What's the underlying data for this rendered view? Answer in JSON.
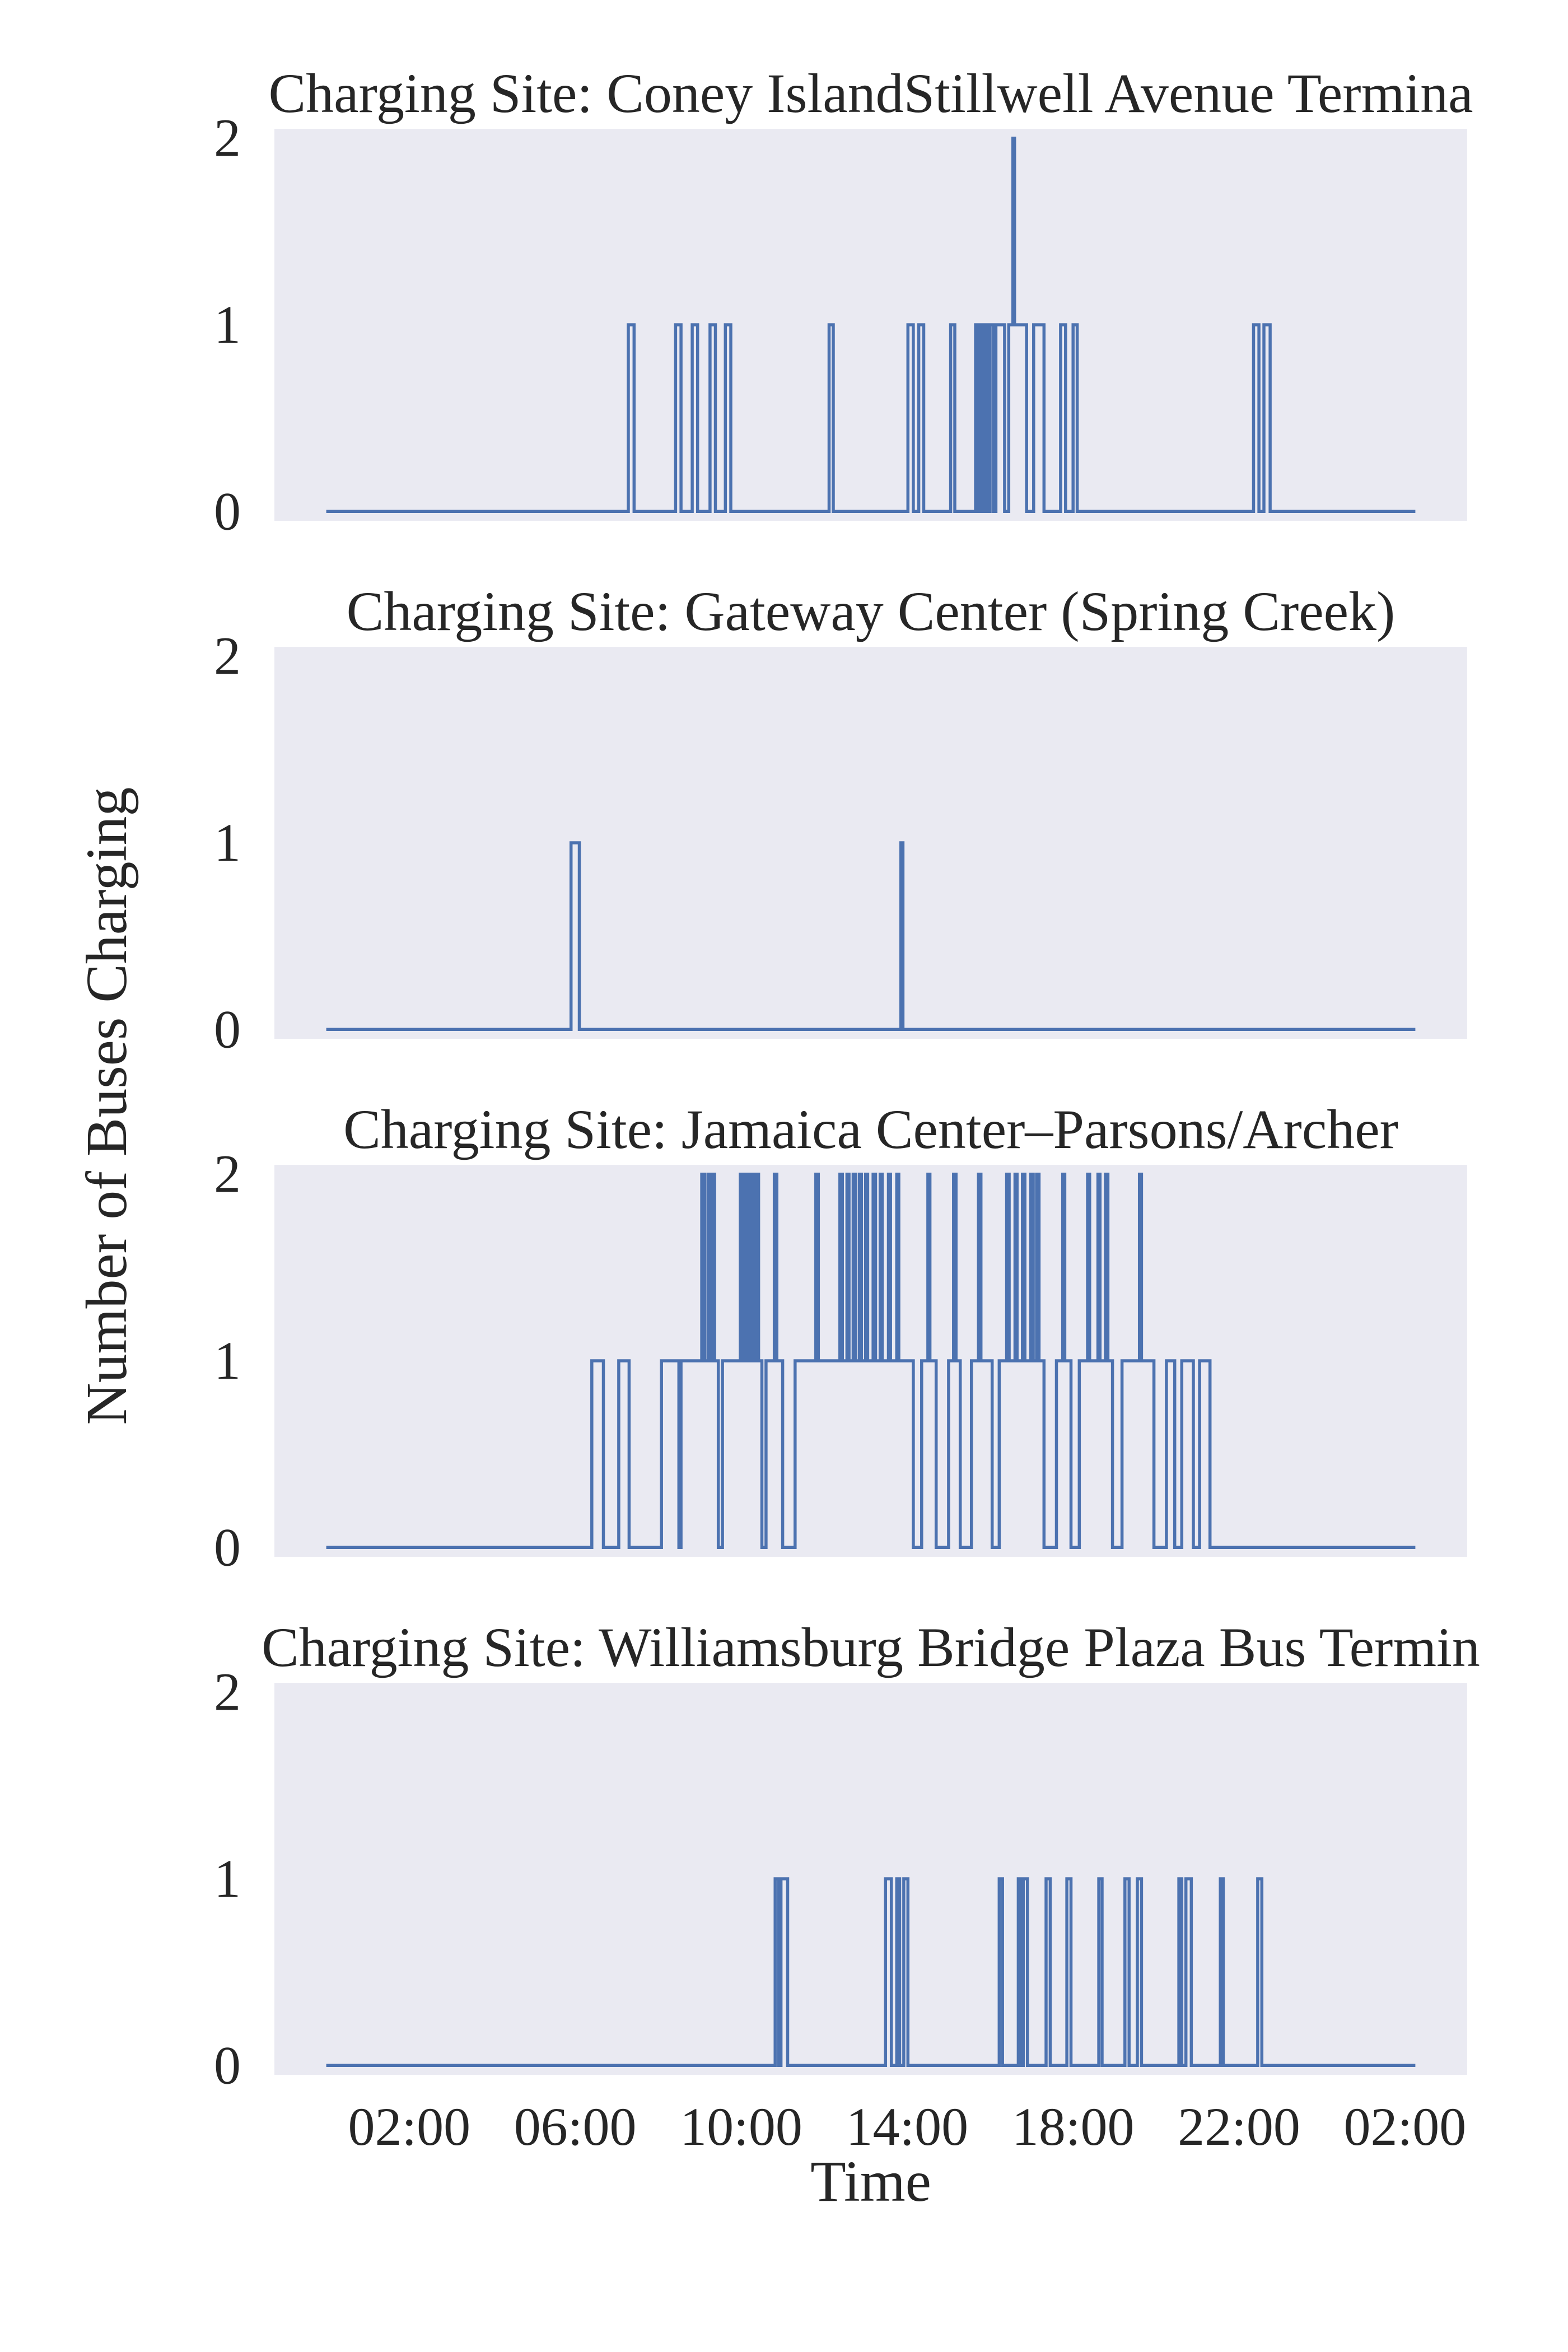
{
  "chart_data": {
    "type": "line",
    "step": "post",
    "xlabel": "Time",
    "ylabel": "Number of Buses Charging",
    "x_unit": "hours since start (00:00 day 1)",
    "xticks": [
      {
        "t": 2,
        "label": "02:00"
      },
      {
        "t": 6,
        "label": "06:00"
      },
      {
        "t": 10,
        "label": "10:00"
      },
      {
        "t": 14,
        "label": "14:00"
      },
      {
        "t": 18,
        "label": "18:00"
      },
      {
        "t": 22,
        "label": "22:00"
      },
      {
        "t": 26,
        "label": "02:00"
      }
    ],
    "xlim": [
      -1.25,
      27.5
    ],
    "ylim": [
      -0.05,
      2.05
    ],
    "yticks": [
      0,
      1,
      2
    ],
    "grid": false,
    "background": "#eaeaf2",
    "line_color": "#4c72b0",
    "panels": [
      {
        "title": "Charging Site: Coney IslandStillwell Avenue Termina",
        "t_start": 0,
        "t_end": 26.25,
        "steps": [
          [
            0,
            0
          ],
          [
            7.28,
            1
          ],
          [
            7.42,
            0
          ],
          [
            8.42,
            1
          ],
          [
            8.55,
            0
          ],
          [
            8.82,
            1
          ],
          [
            8.95,
            0
          ],
          [
            9.25,
            1
          ],
          [
            9.38,
            0
          ],
          [
            9.62,
            1
          ],
          [
            9.75,
            0
          ],
          [
            12.12,
            1
          ],
          [
            12.22,
            0
          ],
          [
            14.02,
            1
          ],
          [
            14.15,
            0
          ],
          [
            14.28,
            1
          ],
          [
            14.4,
            0
          ],
          [
            15.05,
            1
          ],
          [
            15.15,
            0
          ],
          [
            15.65,
            1
          ],
          [
            15.72,
            0
          ],
          [
            15.78,
            1
          ],
          [
            15.85,
            0
          ],
          [
            15.9,
            1
          ],
          [
            15.95,
            0
          ],
          [
            16.0,
            1
          ],
          [
            16.08,
            0
          ],
          [
            16.14,
            1
          ],
          [
            16.35,
            0
          ],
          [
            16.45,
            1
          ],
          [
            16.55,
            2
          ],
          [
            16.59,
            1
          ],
          [
            16.88,
            0
          ],
          [
            17.05,
            1
          ],
          [
            17.3,
            0
          ],
          [
            17.7,
            1
          ],
          [
            17.82,
            0
          ],
          [
            18.0,
            1
          ],
          [
            18.1,
            0
          ],
          [
            22.35,
            1
          ],
          [
            22.48,
            0
          ],
          [
            22.6,
            1
          ],
          [
            22.75,
            0
          ]
        ]
      },
      {
        "title": "Charging Site: Gateway Center (Spring Creek)",
        "t_start": 0,
        "t_end": 26.25,
        "steps": [
          [
            0,
            0
          ],
          [
            5.9,
            1
          ],
          [
            6.1,
            0
          ],
          [
            13.85,
            1
          ],
          [
            13.9,
            0
          ]
        ]
      },
      {
        "title": "Charging Site: Jamaica Center–Parsons/Archer",
        "t_start": 0,
        "t_end": 26.25,
        "steps": [
          [
            0,
            0
          ],
          [
            6.4,
            1
          ],
          [
            6.68,
            0
          ],
          [
            7.05,
            1
          ],
          [
            7.3,
            0
          ],
          [
            8.08,
            1
          ],
          [
            8.5,
            0
          ],
          [
            8.55,
            1
          ],
          [
            9.05,
            2
          ],
          [
            9.12,
            1
          ],
          [
            9.2,
            2
          ],
          [
            9.25,
            1
          ],
          [
            9.3,
            2
          ],
          [
            9.36,
            1
          ],
          [
            9.45,
            0
          ],
          [
            9.55,
            1
          ],
          [
            9.98,
            2
          ],
          [
            10.05,
            1
          ],
          [
            10.12,
            2
          ],
          [
            10.18,
            1
          ],
          [
            10.24,
            2
          ],
          [
            10.3,
            1
          ],
          [
            10.36,
            2
          ],
          [
            10.42,
            1
          ],
          [
            10.5,
            0
          ],
          [
            10.6,
            1
          ],
          [
            10.8,
            2
          ],
          [
            10.86,
            1
          ],
          [
            11.0,
            0
          ],
          [
            11.3,
            1
          ],
          [
            11.8,
            2
          ],
          [
            11.86,
            1
          ],
          [
            12.38,
            2
          ],
          [
            12.44,
            1
          ],
          [
            12.55,
            2
          ],
          [
            12.6,
            1
          ],
          [
            12.7,
            2
          ],
          [
            12.76,
            1
          ],
          [
            12.85,
            2
          ],
          [
            12.9,
            1
          ],
          [
            13.0,
            2
          ],
          [
            13.05,
            1
          ],
          [
            13.18,
            2
          ],
          [
            13.24,
            1
          ],
          [
            13.35,
            2
          ],
          [
            13.4,
            1
          ],
          [
            13.55,
            2
          ],
          [
            13.6,
            1
          ],
          [
            13.75,
            2
          ],
          [
            13.8,
            1
          ],
          [
            14.15,
            0
          ],
          [
            14.35,
            1
          ],
          [
            14.5,
            2
          ],
          [
            14.55,
            1
          ],
          [
            14.7,
            0
          ],
          [
            15.0,
            1
          ],
          [
            15.12,
            2
          ],
          [
            15.18,
            1
          ],
          [
            15.28,
            0
          ],
          [
            15.55,
            1
          ],
          [
            15.72,
            2
          ],
          [
            15.78,
            1
          ],
          [
            16.05,
            0
          ],
          [
            16.22,
            1
          ],
          [
            16.4,
            2
          ],
          [
            16.46,
            1
          ],
          [
            16.6,
            2
          ],
          [
            16.65,
            1
          ],
          [
            16.78,
            2
          ],
          [
            16.84,
            1
          ],
          [
            16.98,
            2
          ],
          [
            17.04,
            1
          ],
          [
            17.12,
            2
          ],
          [
            17.18,
            1
          ],
          [
            17.3,
            0
          ],
          [
            17.6,
            1
          ],
          [
            17.75,
            2
          ],
          [
            17.8,
            1
          ],
          [
            17.95,
            0
          ],
          [
            18.15,
            1
          ],
          [
            18.35,
            2
          ],
          [
            18.4,
            1
          ],
          [
            18.6,
            2
          ],
          [
            18.65,
            1
          ],
          [
            18.78,
            2
          ],
          [
            18.84,
            1
          ],
          [
            18.95,
            0
          ],
          [
            19.18,
            1
          ],
          [
            19.6,
            2
          ],
          [
            19.65,
            1
          ],
          [
            19.95,
            0
          ],
          [
            20.25,
            1
          ],
          [
            20.45,
            0
          ],
          [
            20.62,
            1
          ],
          [
            20.9,
            0
          ],
          [
            21.05,
            1
          ],
          [
            21.3,
            0
          ]
        ]
      },
      {
        "title": "Charging Site: Williamsburg Bridge Plaza Bus Termin",
        "t_start": 0,
        "t_end": 26.25,
        "steps": [
          [
            0,
            0
          ],
          [
            10.82,
            1
          ],
          [
            10.9,
            0
          ],
          [
            10.96,
            1
          ],
          [
            11.12,
            0
          ],
          [
            13.48,
            1
          ],
          [
            13.62,
            0
          ],
          [
            13.75,
            1
          ],
          [
            13.82,
            0
          ],
          [
            13.92,
            1
          ],
          [
            14.02,
            0
          ],
          [
            16.22,
            1
          ],
          [
            16.3,
            0
          ],
          [
            16.68,
            1
          ],
          [
            16.75,
            0
          ],
          [
            16.8,
            1
          ],
          [
            16.9,
            0
          ],
          [
            17.35,
            1
          ],
          [
            17.45,
            0
          ],
          [
            17.85,
            1
          ],
          [
            17.95,
            0
          ],
          [
            18.62,
            1
          ],
          [
            18.7,
            0
          ],
          [
            19.25,
            1
          ],
          [
            19.35,
            0
          ],
          [
            19.55,
            1
          ],
          [
            19.65,
            0
          ],
          [
            20.55,
            1
          ],
          [
            20.62,
            0
          ],
          [
            20.72,
            1
          ],
          [
            20.85,
            0
          ],
          [
            21.55,
            1
          ],
          [
            21.62,
            0
          ],
          [
            22.45,
            1
          ],
          [
            22.55,
            0
          ]
        ]
      }
    ]
  }
}
